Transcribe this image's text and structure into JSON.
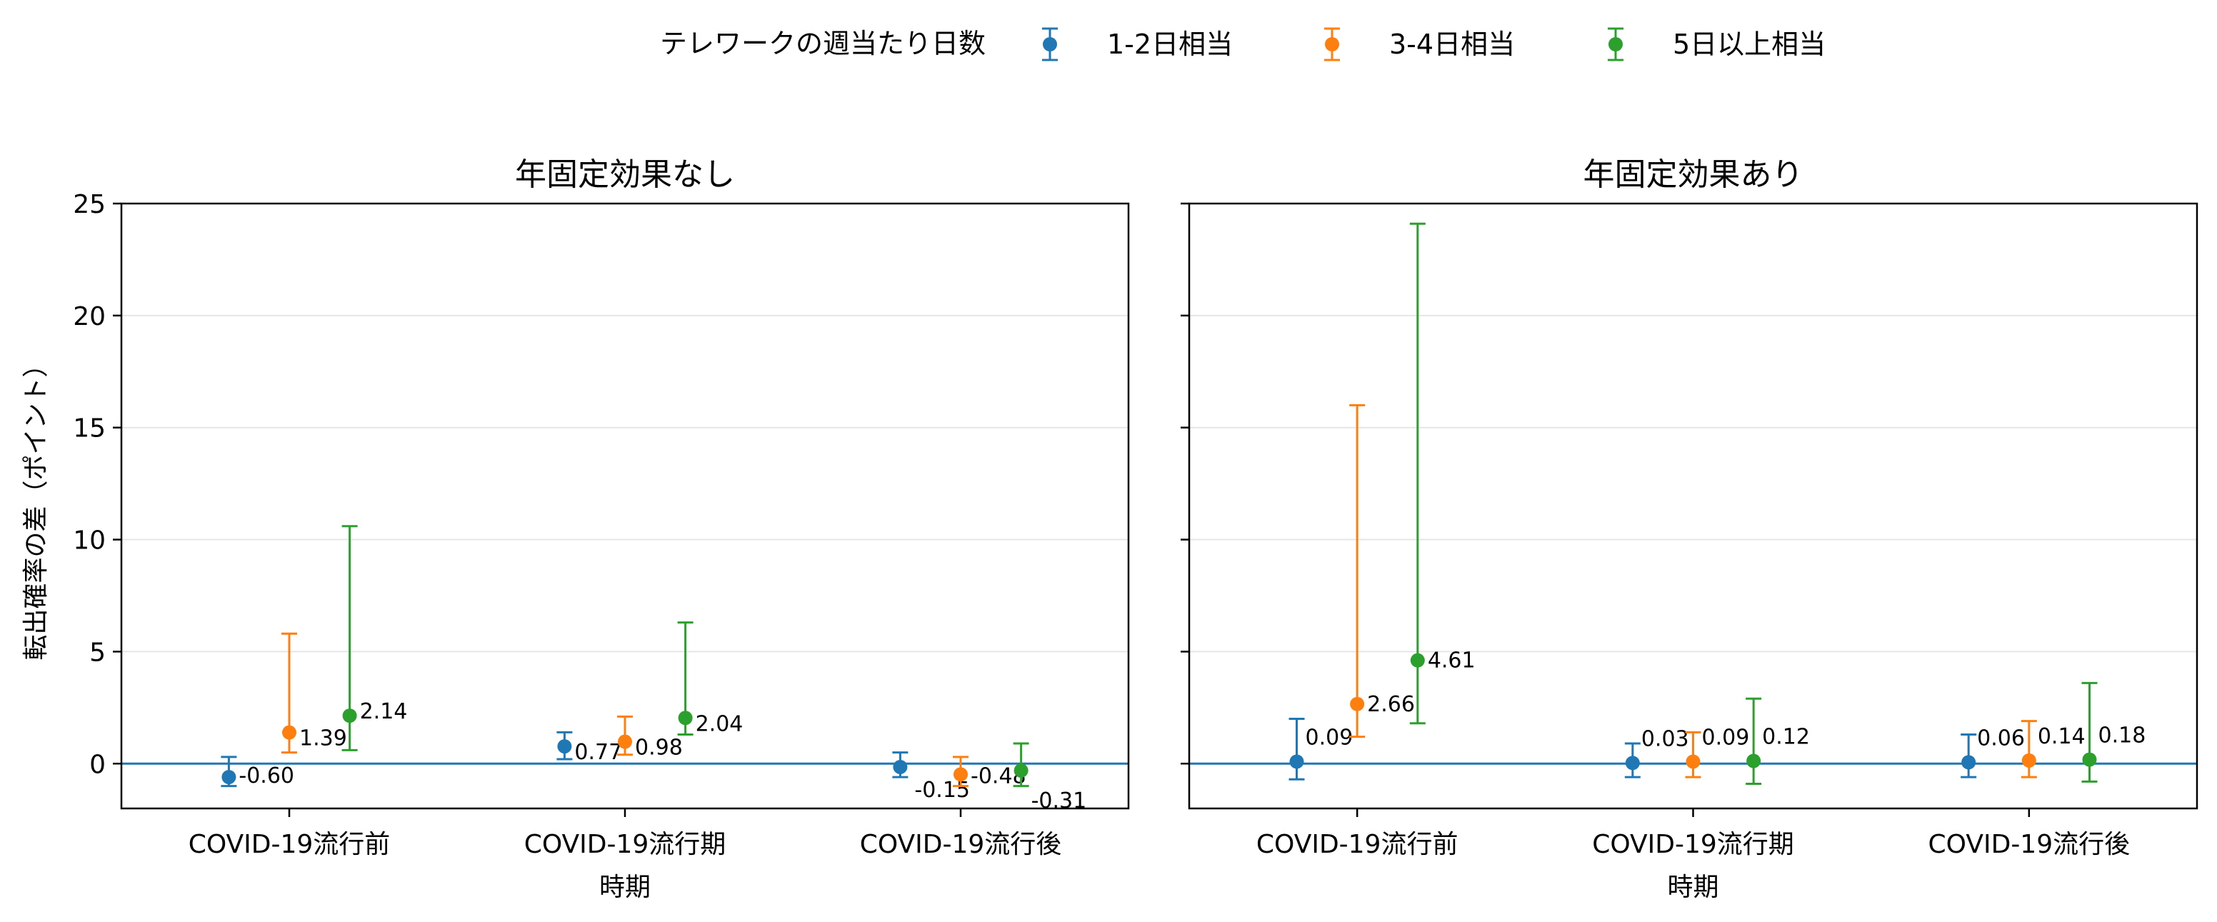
{
  "legend": {
    "title": "テレワークの週当たり日数",
    "location": "top-center"
  },
  "chart_data": [
    {
      "type": "scatter",
      "title": "年固定効果なし",
      "xlabel": "時期",
      "ylabel": "転出確率の差（ポイント）",
      "categories": [
        "COVID-19流行前",
        "COVID-19流行期",
        "COVID-19流行後"
      ],
      "ylim": [
        -2,
        25
      ],
      "yticks": [
        0,
        5,
        10,
        15,
        20,
        25
      ],
      "grid": true,
      "reference_line": 0,
      "series": [
        {
          "name": "1-2日相当",
          "color": "#1f77b4",
          "values": [
            -0.6,
            0.77,
            -0.15
          ],
          "lower": [
            -1.0,
            0.2,
            -0.6
          ],
          "upper": [
            0.3,
            1.4,
            0.5
          ],
          "labels": [
            "-0.60",
            "0.77",
            "-0.15"
          ]
        },
        {
          "name": "3-4日相当",
          "color": "#ff7f0e",
          "values": [
            1.39,
            0.98,
            -0.48
          ],
          "lower": [
            0.5,
            0.4,
            -1.0
          ],
          "upper": [
            5.8,
            2.1,
            0.3
          ],
          "labels": [
            "1.39",
            "0.98",
            "-0.48"
          ]
        },
        {
          "name": "5日以上相当",
          "color": "#2ca02c",
          "values": [
            2.14,
            2.04,
            -0.31
          ],
          "lower": [
            0.6,
            1.3,
            -1.0
          ],
          "upper": [
            10.6,
            6.3,
            0.9
          ],
          "labels": [
            "2.14",
            "2.04",
            "-0.31"
          ]
        }
      ]
    },
    {
      "type": "scatter",
      "title": "年固定効果あり",
      "xlabel": "時期",
      "ylabel": "",
      "categories": [
        "COVID-19流行前",
        "COVID-19流行期",
        "COVID-19流行後"
      ],
      "ylim": [
        -2,
        25
      ],
      "yticks": [
        0,
        5,
        10,
        15,
        20,
        25
      ],
      "grid": true,
      "reference_line": 0,
      "series": [
        {
          "name": "1-2日相当",
          "color": "#1f77b4",
          "values": [
            0.09,
            0.03,
            0.06
          ],
          "lower": [
            -0.7,
            -0.6,
            -0.6
          ],
          "upper": [
            2.0,
            0.9,
            1.3
          ],
          "labels": [
            "0.09",
            "0.03",
            "0.06"
          ]
        },
        {
          "name": "3-4日相当",
          "color": "#ff7f0e",
          "values": [
            2.66,
            0.09,
            0.14
          ],
          "lower": [
            1.2,
            -0.6,
            -0.6
          ],
          "upper": [
            16.0,
            1.4,
            1.9
          ],
          "labels": [
            "2.66",
            "0.09",
            "0.14"
          ]
        },
        {
          "name": "5日以上相当",
          "color": "#2ca02c",
          "values": [
            4.61,
            0.12,
            0.18
          ],
          "lower": [
            1.8,
            -0.9,
            -0.8
          ],
          "upper": [
            24.1,
            2.9,
            3.6
          ],
          "labels": [
            "4.61",
            "0.12",
            "0.18"
          ]
        }
      ]
    }
  ]
}
